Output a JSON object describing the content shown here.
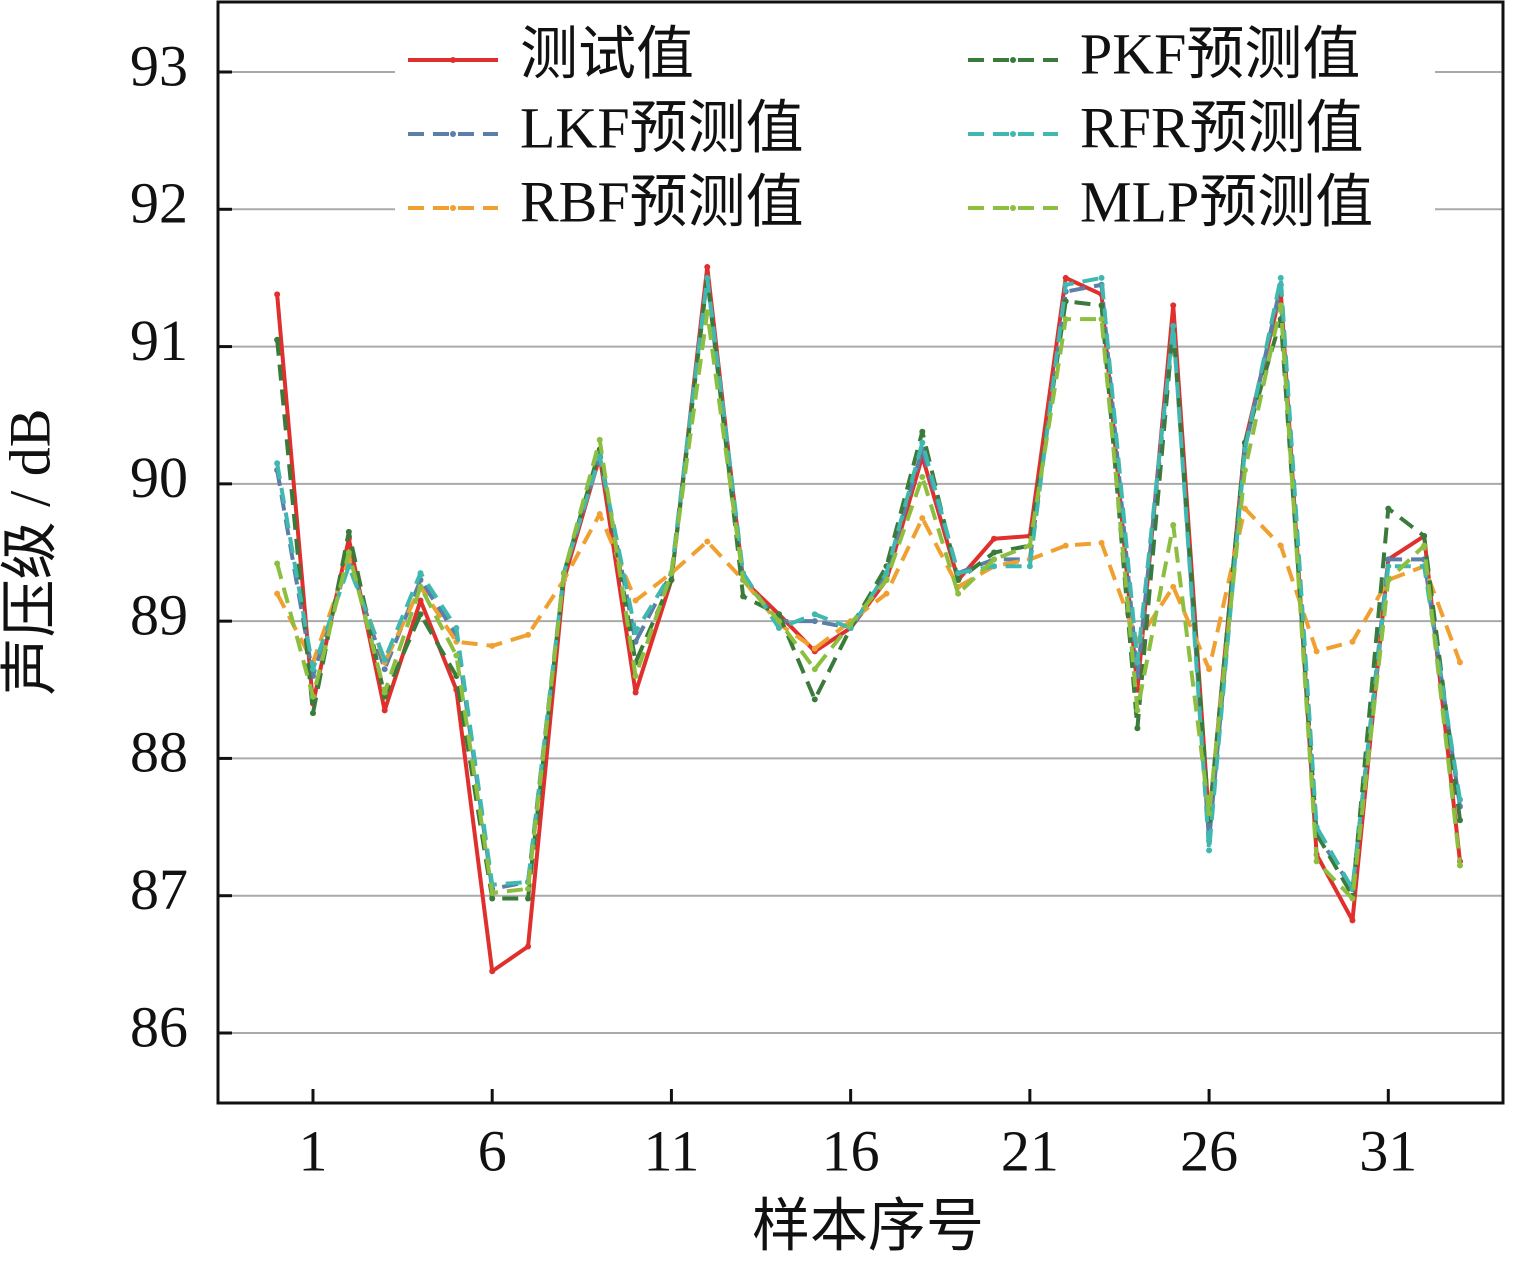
{
  "chart_data": {
    "type": "line",
    "xlabel": "样本序号",
    "ylabel": "声压级 / dB",
    "x": [
      0,
      1,
      2,
      3,
      4,
      5,
      6,
      7,
      8,
      9,
      10,
      11,
      12,
      13,
      14,
      15,
      16,
      17,
      18,
      19,
      20,
      21,
      22,
      23,
      24,
      25,
      26,
      27,
      28,
      29,
      30,
      31,
      32,
      33
    ],
    "xlim": [
      -1.65,
      34.2
    ],
    "xticks": [
      1,
      6,
      11,
      16,
      21,
      26,
      31
    ],
    "ylim": [
      85.49,
      93.51
    ],
    "yticks": [
      86,
      87,
      88,
      89,
      90,
      91,
      92,
      93
    ],
    "grid": true,
    "legend": "upper center",
    "series": [
      {
        "name": "测试值",
        "color": "#e0302e",
        "linestyle": "solid",
        "values": [
          91.38,
          88.4,
          89.6,
          88.35,
          89.15,
          88.5,
          86.45,
          86.63,
          89.3,
          90.2,
          88.48,
          89.3,
          91.58,
          89.3,
          89.05,
          88.78,
          88.95,
          89.3,
          90.2,
          89.3,
          89.6,
          89.62,
          91.5,
          91.38,
          88.5,
          91.3,
          87.55,
          90.3,
          91.4,
          87.3,
          86.82,
          89.45,
          89.62,
          87.25
        ]
      },
      {
        "name": "LKF预测值",
        "color": "#5b7fa8",
        "linestyle": "dashed",
        "values": [
          90.1,
          88.6,
          89.45,
          88.65,
          89.3,
          88.9,
          87.05,
          87.1,
          89.35,
          90.2,
          88.85,
          89.35,
          91.5,
          89.3,
          89.0,
          89.0,
          88.95,
          89.35,
          90.25,
          89.35,
          89.45,
          89.45,
          91.4,
          91.45,
          88.6,
          91.15,
          87.4,
          90.25,
          91.45,
          87.45,
          87.05,
          89.45,
          89.45,
          87.65
        ]
      },
      {
        "name": "RBF预测值",
        "color": "#f0a030",
        "linestyle": "dashed",
        "values": [
          89.2,
          88.7,
          89.45,
          88.7,
          89.25,
          88.85,
          88.82,
          88.9,
          89.3,
          89.78,
          89.15,
          89.35,
          89.58,
          89.3,
          88.98,
          88.8,
          89.0,
          89.2,
          89.75,
          89.25,
          89.4,
          89.45,
          89.55,
          89.57,
          88.85,
          89.25,
          88.65,
          89.82,
          89.55,
          88.78,
          88.85,
          89.3,
          89.4,
          88.7
        ]
      },
      {
        "name": "PKF预测值",
        "color": "#3a7a3a",
        "linestyle": "dashed",
        "values": [
          91.05,
          88.33,
          89.65,
          88.45,
          89.05,
          88.6,
          86.98,
          86.98,
          89.35,
          90.25,
          88.7,
          89.3,
          91.5,
          89.18,
          89.05,
          88.43,
          88.95,
          89.4,
          90.38,
          89.3,
          89.5,
          89.55,
          91.33,
          91.3,
          88.22,
          91.15,
          87.55,
          90.3,
          91.2,
          87.45,
          87.0,
          89.82,
          89.62,
          87.55
        ]
      },
      {
        "name": "RFR预测值",
        "color": "#40b8b0",
        "linestyle": "dashed",
        "values": [
          90.15,
          88.65,
          89.4,
          88.72,
          89.35,
          88.95,
          87.08,
          87.1,
          89.35,
          90.2,
          88.92,
          89.35,
          91.5,
          89.35,
          88.95,
          89.05,
          88.95,
          89.35,
          90.3,
          89.35,
          89.4,
          89.4,
          91.45,
          91.5,
          88.7,
          91.15,
          87.33,
          90.25,
          91.5,
          87.5,
          87.05,
          89.4,
          89.4,
          87.7
        ]
      },
      {
        "name": "MLP预测值",
        "color": "#8cbf40",
        "linestyle": "dashed",
        "values": [
          89.42,
          88.45,
          89.5,
          88.48,
          89.25,
          88.75,
          87.02,
          87.05,
          89.35,
          90.32,
          88.6,
          89.35,
          91.25,
          89.3,
          89.0,
          88.65,
          88.98,
          89.3,
          90.05,
          89.2,
          89.45,
          89.55,
          91.2,
          91.2,
          88.35,
          89.7,
          87.6,
          90.1,
          91.3,
          87.25,
          86.98,
          89.3,
          89.55,
          87.22
        ]
      }
    ]
  }
}
